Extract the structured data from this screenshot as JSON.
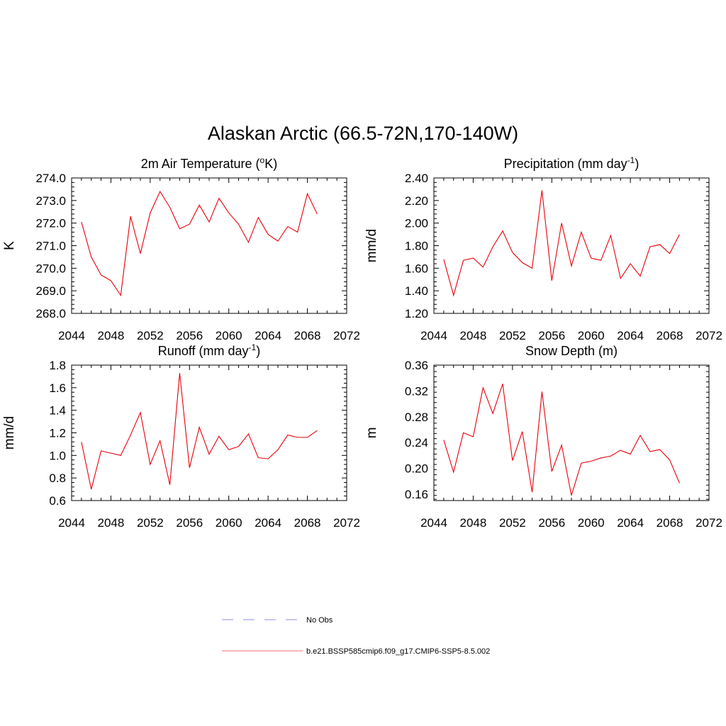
{
  "figure": {
    "title": "Alaskan Arctic (66.5-72N,170-140W)"
  },
  "chart_data": [
    {
      "type": "line",
      "title": "2m Air Temperature (",
      "title_sup": "o",
      "title_suffix": "K)",
      "ylabel": "K",
      "xlabel": "",
      "xlim": [
        2044,
        2072
      ],
      "ylim": [
        268,
        274
      ],
      "xticks": [
        2044,
        2048,
        2052,
        2056,
        2060,
        2064,
        2068,
        2072
      ],
      "yticks": [
        268,
        269,
        270,
        271,
        272,
        273,
        274
      ],
      "ytick_decimals": 1,
      "ytick_labels": [
        "268.0",
        "269.0",
        "270.0",
        "271.0",
        "272.0",
        "273.0",
        "274.0"
      ],
      "xtick_labels": [
        "2044",
        "2048",
        "2052",
        "2056",
        "2060",
        "2064",
        "2068",
        "2072"
      ],
      "series": [
        {
          "color": "#e8000b",
          "x": [
            2045,
            2046,
            2047,
            2048,
            2049,
            2050,
            2051,
            2052,
            2053,
            2054,
            2055,
            2056,
            2057,
            2058,
            2059,
            2060,
            2061,
            2062,
            2063,
            2064,
            2065,
            2066,
            2067,
            2068,
            2069
          ],
          "y": [
            272.05,
            270.5,
            269.7,
            269.45,
            268.8,
            272.3,
            270.65,
            272.45,
            273.4,
            272.7,
            271.75,
            271.95,
            272.8,
            272.05,
            273.1,
            272.45,
            271.95,
            271.15,
            272.25,
            271.5,
            271.2,
            271.85,
            271.6,
            273.3,
            272.4
          ]
        }
      ]
    },
    {
      "type": "line",
      "title": "Precipitation (mm day",
      "title_sup": "-1",
      "title_suffix": ")",
      "ylabel": "mm/d",
      "xlabel": "",
      "xlim": [
        2044,
        2072
      ],
      "ylim": [
        1.2,
        2.4
      ],
      "xticks": [
        2044,
        2048,
        2052,
        2056,
        2060,
        2064,
        2068,
        2072
      ],
      "yticks": [
        1.2,
        1.4,
        1.6,
        1.8,
        2.0,
        2.2,
        2.4
      ],
      "ytick_labels": [
        "1.20",
        "1.40",
        "1.60",
        "1.80",
        "2.00",
        "2.20",
        "2.40"
      ],
      "xtick_labels": [
        "2044",
        "2048",
        "2052",
        "2056",
        "2060",
        "2064",
        "2068",
        "2072"
      ],
      "series": [
        {
          "color": "#e8000b",
          "x": [
            2045,
            2046,
            2047,
            2048,
            2049,
            2050,
            2051,
            2052,
            2053,
            2054,
            2055,
            2056,
            2057,
            2058,
            2059,
            2060,
            2061,
            2062,
            2063,
            2064,
            2065,
            2066,
            2067,
            2068,
            2069
          ],
          "y": [
            1.68,
            1.36,
            1.67,
            1.69,
            1.61,
            1.79,
            1.93,
            1.74,
            1.65,
            1.6,
            2.29,
            1.49,
            2.0,
            1.62,
            1.92,
            1.69,
            1.67,
            1.89,
            1.51,
            1.64,
            1.53,
            1.79,
            1.81,
            1.73,
            1.9
          ]
        }
      ]
    },
    {
      "type": "line",
      "title": "Runoff (mm day",
      "title_sup": "-1",
      "title_suffix": ")",
      "ylabel": "mm/d",
      "xlabel": "",
      "xlim": [
        2044,
        2072
      ],
      "ylim": [
        0.6,
        1.8
      ],
      "xticks": [
        2044,
        2048,
        2052,
        2056,
        2060,
        2064,
        2068,
        2072
      ],
      "yticks": [
        0.6,
        0.8,
        1.0,
        1.2,
        1.4,
        1.6,
        1.8
      ],
      "ytick_labels": [
        "0.6",
        "0.8",
        "1.0",
        "1.2",
        "1.4",
        "1.6",
        "1.8"
      ],
      "xtick_labels": [
        "2044",
        "2048",
        "2052",
        "2056",
        "2060",
        "2064",
        "2068",
        "2072"
      ],
      "series": [
        {
          "color": "#e8000b",
          "x": [
            2045,
            2046,
            2047,
            2048,
            2049,
            2050,
            2051,
            2052,
            2053,
            2054,
            2055,
            2056,
            2057,
            2058,
            2059,
            2060,
            2061,
            2062,
            2063,
            2064,
            2065,
            2066,
            2067,
            2068,
            2069
          ],
          "y": [
            1.12,
            0.7,
            1.04,
            1.02,
            1.0,
            1.18,
            1.38,
            0.92,
            1.13,
            0.74,
            1.73,
            0.89,
            1.25,
            1.01,
            1.17,
            1.05,
            1.08,
            1.19,
            0.98,
            0.97,
            1.05,
            1.18,
            1.16,
            1.16,
            1.22
          ]
        }
      ]
    },
    {
      "type": "line",
      "title": "Snow Depth (m)",
      "title_sup": "",
      "title_suffix": "",
      "ylabel": "m",
      "xlabel": "",
      "xlim": [
        2044,
        2072
      ],
      "ylim": [
        0.15,
        0.36
      ],
      "xticks": [
        2044,
        2048,
        2052,
        2056,
        2060,
        2064,
        2068,
        2072
      ],
      "yticks": [
        0.16,
        0.2,
        0.24,
        0.28,
        0.32,
        0.36
      ],
      "ytick_labels": [
        "0.16",
        "0.20",
        "0.24",
        "0.28",
        "0.32",
        "0.36"
      ],
      "xtick_labels": [
        "2044",
        "2048",
        "2052",
        "2056",
        "2060",
        "2064",
        "2068",
        "2072"
      ],
      "series": [
        {
          "color": "#e8000b",
          "x": [
            2045,
            2046,
            2047,
            2048,
            2049,
            2050,
            2051,
            2052,
            2053,
            2054,
            2055,
            2056,
            2057,
            2058,
            2059,
            2060,
            2061,
            2062,
            2063,
            2064,
            2065,
            2066,
            2067,
            2068,
            2069
          ],
          "y": [
            0.244,
            0.194,
            0.255,
            0.249,
            0.325,
            0.285,
            0.331,
            0.212,
            0.257,
            0.163,
            0.319,
            0.195,
            0.236,
            0.158,
            0.208,
            0.211,
            0.216,
            0.219,
            0.228,
            0.222,
            0.251,
            0.226,
            0.229,
            0.213,
            0.177
          ]
        }
      ]
    }
  ],
  "legend": {
    "entries": [
      {
        "label": "No Obs",
        "color": "#a3a3ee",
        "style": "dashed"
      },
      {
        "label": "b.e21.BSSP585cmip6.f09_g17.CMIP6-SSP5-8.5.002",
        "color": "#f08a8a",
        "style": "solid"
      }
    ]
  }
}
